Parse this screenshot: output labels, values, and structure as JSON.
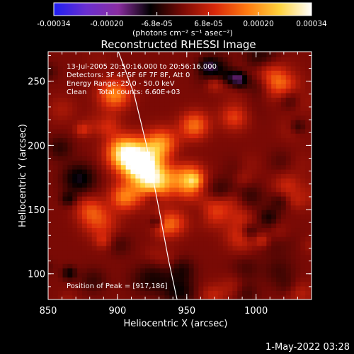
{
  "chart_data": {
    "type": "heatmap",
    "title": "Reconstructed RHESSI Image",
    "xlabel": "Heliocentric X (arcsec)",
    "ylabel": "Heliocentric Y (arcsec)",
    "xlim": [
      850,
      1040
    ],
    "ylim": [
      80,
      273
    ],
    "x_ticks": [
      850,
      900,
      950,
      1000
    ],
    "y_ticks": [
      100,
      150,
      200,
      250
    ],
    "colorbar": {
      "range": [
        -0.00034,
        0.00034
      ],
      "tick_values": [
        -0.00034,
        -0.0002,
        -6.8e-05,
        6.8e-05,
        0.0002,
        0.00034
      ],
      "tick_labels": [
        "-0.00034",
        "-0.00020",
        "-6.8e-05",
        "6.8e-05",
        "0.00020",
        "0.00034"
      ],
      "unit_label": "(photons cm⁻² s⁻¹ asec⁻²)",
      "colormap": [
        "#1e1ef2",
        "#6a2fd0",
        "#8a2da0",
        "#000000",
        "#7a0a05",
        "#d8280a",
        "#ff7a10",
        "#ffd23c",
        "#ffffff"
      ]
    },
    "annotations": [
      "13-Jul-2005 20:50:16.000 to 20:56:16.000",
      "Detectors: 3F 4F 5F 6F 7F 8F, Att 0",
      "Energy Range: 25.0 - 50.0 keV",
      "Clean     Total counts: 6.60E+03"
    ],
    "peak_label": "Position of Peak = [917,186]",
    "peak": [
      917,
      186
    ],
    "limb_curve": [
      [
        900,
        275
      ],
      [
        912,
        240
      ],
      [
        921,
        200
      ],
      [
        930,
        150
      ],
      [
        937,
        110
      ],
      [
        943,
        80
      ]
    ],
    "footer": "1-May-2022 03:28"
  }
}
